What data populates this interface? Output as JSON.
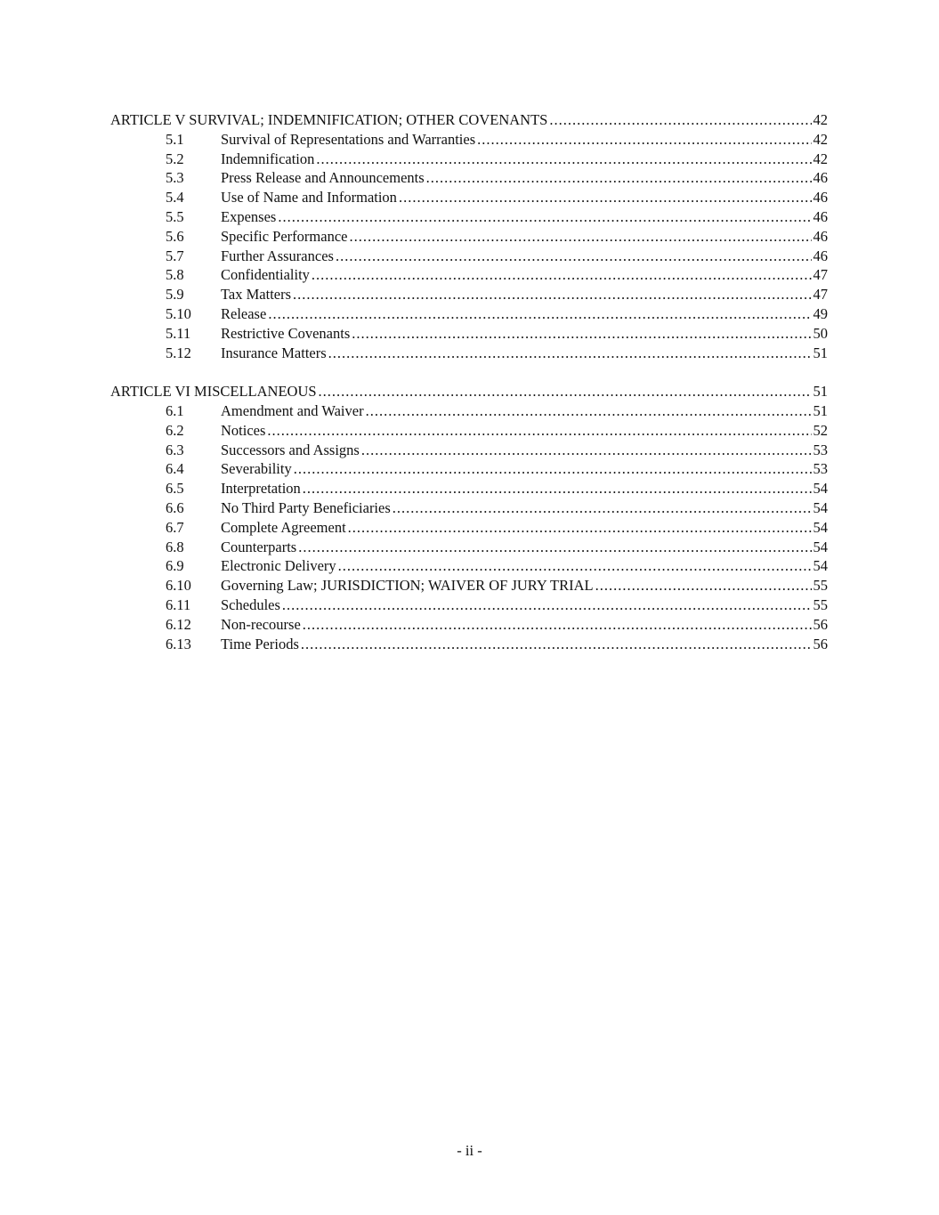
{
  "toc": [
    {
      "heading": "ARTICLE V SURVIVAL; INDEMNIFICATION; OTHER COVENANTS",
      "page": "42",
      "sections": [
        {
          "num": "5.1",
          "title": "Survival of Representations and Warranties",
          "page": "42"
        },
        {
          "num": "5.2",
          "title": "Indemnification",
          "page": "42"
        },
        {
          "num": "5.3",
          "title": "Press Release and Announcements",
          "page": "46"
        },
        {
          "num": "5.4",
          "title": "Use of Name and Information",
          "page": "46"
        },
        {
          "num": "5.5",
          "title": "Expenses",
          "page": "46"
        },
        {
          "num": "5.6",
          "title": "Specific Performance",
          "page": "46"
        },
        {
          "num": "5.7",
          "title": "Further Assurances",
          "page": "46"
        },
        {
          "num": "5.8",
          "title": "Confidentiality",
          "page": "47"
        },
        {
          "num": "5.9",
          "title": "Tax Matters",
          "page": "47"
        },
        {
          "num": "5.10",
          "title": "Release",
          "page": "49"
        },
        {
          "num": "5.11",
          "title": "Restrictive Covenants",
          "page": "50"
        },
        {
          "num": "5.12",
          "title": "Insurance Matters",
          "page": "51"
        }
      ]
    },
    {
      "heading": "ARTICLE VI MISCELLANEOUS",
      "page": "51",
      "sections": [
        {
          "num": "6.1",
          "title": "Amendment and Waiver",
          "page": "51"
        },
        {
          "num": "6.2",
          "title": "Notices",
          "page": "52"
        },
        {
          "num": "6.3",
          "title": "Successors and Assigns",
          "page": "53"
        },
        {
          "num": "6.4",
          "title": "Severability",
          "page": "53"
        },
        {
          "num": "6.5",
          "title": "Interpretation",
          "page": "54"
        },
        {
          "num": "6.6",
          "title": "No Third Party Beneficiaries",
          "page": "54"
        },
        {
          "num": "6.7",
          "title": "Complete Agreement",
          "page": "54"
        },
        {
          "num": "6.8",
          "title": "Counterparts",
          "page": "54"
        },
        {
          "num": "6.9",
          "title": "Electronic Delivery",
          "page": "54"
        },
        {
          "num": "6.10",
          "title": "Governing Law; JURISDICTION; WAIVER OF JURY TRIAL",
          "page": "55"
        },
        {
          "num": "6.11",
          "title": "Schedules",
          "page": "55"
        },
        {
          "num": "6.12",
          "title": "Non-recourse",
          "page": "56"
        },
        {
          "num": "6.13",
          "title": "Time Periods",
          "page": "56"
        }
      ]
    }
  ],
  "footer": {
    "page_number": "- ii -"
  }
}
